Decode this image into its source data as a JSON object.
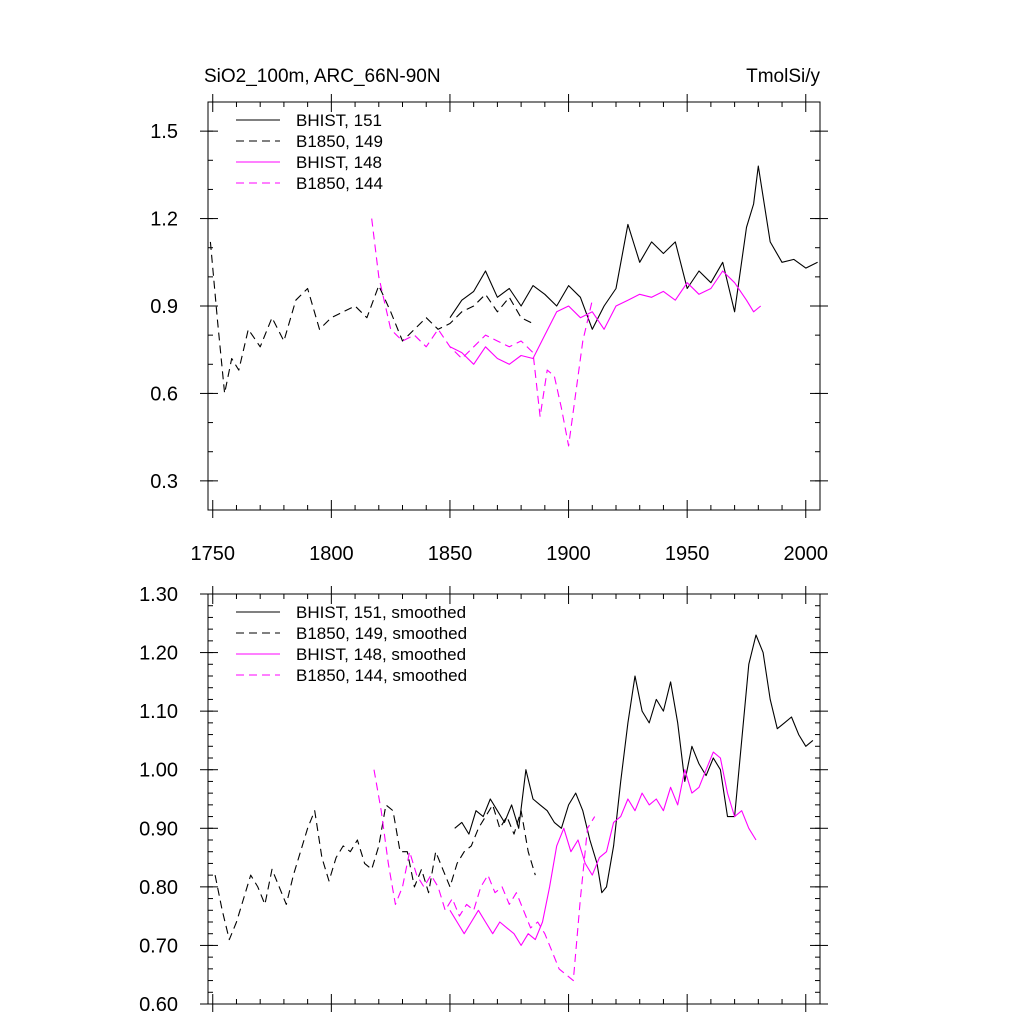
{
  "chart_data": [
    {
      "type": "line",
      "title_left": "SiO2_100m, ARC_66N-90N",
      "title_right": "TmolSi/y",
      "xlabel": "",
      "ylabel": "",
      "xlim": [
        1748,
        2006
      ],
      "ylim": [
        0.2,
        1.6
      ],
      "xticks": [
        1750,
        1800,
        1850,
        1900,
        1950,
        2000
      ],
      "xtick_labels": [
        "1750",
        "1800",
        "1850",
        "1900",
        "1950",
        "2000"
      ],
      "yticks": [
        0.3,
        0.6,
        0.9,
        1.2,
        1.5
      ],
      "ytick_labels": [
        "0.3",
        "0.6",
        "0.9",
        "1.2",
        "1.5"
      ],
      "legend_position": "top-left",
      "series": [
        {
          "name": "BHIST, 151",
          "color": "#000000",
          "dash": "solid",
          "x": [
            1850,
            1855,
            1860,
            1865,
            1870,
            1875,
            1880,
            1885,
            1890,
            1895,
            1900,
            1905,
            1910,
            1915,
            1920,
            1925,
            1930,
            1935,
            1940,
            1945,
            1950,
            1955,
            1960,
            1965,
            1970,
            1975,
            1978,
            1980,
            1985,
            1990,
            1995,
            2000,
            2005
          ],
          "y": [
            0.86,
            0.92,
            0.95,
            1.02,
            0.93,
            0.96,
            0.9,
            0.97,
            0.94,
            0.9,
            0.97,
            0.93,
            0.82,
            0.9,
            0.96,
            1.18,
            1.05,
            1.12,
            1.08,
            1.12,
            0.96,
            1.02,
            0.98,
            1.05,
            0.88,
            1.17,
            1.25,
            1.38,
            1.12,
            1.05,
            1.06,
            1.03,
            1.05
          ]
        },
        {
          "name": "B1850, 149",
          "color": "#000000",
          "dash": "8,5",
          "x": [
            1749,
            1752,
            1755,
            1758,
            1761,
            1765,
            1770,
            1775,
            1780,
            1785,
            1790,
            1795,
            1800,
            1805,
            1810,
            1815,
            1820,
            1825,
            1830,
            1835,
            1840,
            1845,
            1850,
            1855,
            1860,
            1865,
            1870,
            1875,
            1880,
            1885
          ],
          "y": [
            1.12,
            0.85,
            0.6,
            0.72,
            0.68,
            0.82,
            0.76,
            0.86,
            0.78,
            0.92,
            0.96,
            0.82,
            0.86,
            0.88,
            0.9,
            0.86,
            0.97,
            0.88,
            0.78,
            0.82,
            0.86,
            0.82,
            0.84,
            0.88,
            0.9,
            0.94,
            0.88,
            0.93,
            0.86,
            0.84
          ]
        },
        {
          "name": "BHIST, 148",
          "color": "#ff00ff",
          "dash": "solid",
          "x": [
            1850,
            1855,
            1860,
            1865,
            1870,
            1875,
            1880,
            1885,
            1890,
            1895,
            1900,
            1905,
            1910,
            1915,
            1920,
            1925,
            1930,
            1935,
            1940,
            1945,
            1950,
            1955,
            1960,
            1965,
            1970,
            1975,
            1978,
            1981
          ],
          "y": [
            0.76,
            0.74,
            0.7,
            0.76,
            0.72,
            0.7,
            0.73,
            0.72,
            0.8,
            0.88,
            0.9,
            0.86,
            0.88,
            0.82,
            0.9,
            0.92,
            0.94,
            0.93,
            0.95,
            0.92,
            0.98,
            0.94,
            0.96,
            1.02,
            0.98,
            0.92,
            0.88,
            0.9
          ]
        },
        {
          "name": "B1850, 144",
          "color": "#ff00ff",
          "dash": "8,5",
          "x": [
            1817,
            1820,
            1825,
            1830,
            1835,
            1840,
            1845,
            1850,
            1855,
            1860,
            1865,
            1870,
            1875,
            1880,
            1885,
            1888,
            1891,
            1894,
            1897,
            1900,
            1903,
            1906,
            1910
          ],
          "y": [
            1.2,
            1.0,
            0.82,
            0.78,
            0.8,
            0.76,
            0.82,
            0.76,
            0.72,
            0.76,
            0.8,
            0.78,
            0.76,
            0.78,
            0.74,
            0.52,
            0.68,
            0.66,
            0.55,
            0.42,
            0.6,
            0.78,
            0.92
          ]
        }
      ]
    },
    {
      "type": "line",
      "xlabel": "",
      "ylabel": "",
      "xlim": [
        1748,
        2006
      ],
      "ylim": [
        0.6,
        1.3
      ],
      "xticks": [
        1750,
        1800,
        1850,
        1900,
        1950,
        2000
      ],
      "yticks": [
        0.6,
        0.7,
        0.8,
        0.9,
        1.0,
        1.1,
        1.2,
        1.3
      ],
      "ytick_labels": [
        "0.60",
        "0.70",
        "0.80",
        "0.90",
        "1.00",
        "1.10",
        "1.20",
        "1.30"
      ],
      "legend_position": "top-left",
      "series": [
        {
          "name": "BHIST, 151, smoothed",
          "color": "#000000",
          "dash": "solid",
          "x": [
            1852,
            1855,
            1858,
            1861,
            1864,
            1867,
            1870,
            1873,
            1876,
            1879,
            1882,
            1885,
            1888,
            1891,
            1894,
            1897,
            1900,
            1903,
            1906,
            1909,
            1912,
            1914,
            1916,
            1919,
            1922,
            1925,
            1928,
            1931,
            1934,
            1937,
            1940,
            1943,
            1946,
            1949,
            1952,
            1955,
            1958,
            1961,
            1964,
            1967,
            1970,
            1973,
            1976,
            1979,
            1982,
            1985,
            1988,
            1991,
            1994,
            1997,
            2000,
            2003
          ],
          "y": [
            0.9,
            0.91,
            0.89,
            0.93,
            0.92,
            0.95,
            0.93,
            0.91,
            0.94,
            0.9,
            1.0,
            0.95,
            0.94,
            0.93,
            0.91,
            0.9,
            0.94,
            0.96,
            0.93,
            0.88,
            0.84,
            0.79,
            0.8,
            0.87,
            0.98,
            1.08,
            1.16,
            1.1,
            1.08,
            1.12,
            1.1,
            1.15,
            1.08,
            0.98,
            1.04,
            1.01,
            0.99,
            1.02,
            1.0,
            0.92,
            0.92,
            1.05,
            1.18,
            1.23,
            1.2,
            1.12,
            1.07,
            1.08,
            1.09,
            1.06,
            1.04,
            1.05
          ]
        },
        {
          "name": "B1850, 149, smoothed",
          "color": "#000000",
          "dash": "8,5",
          "x": [
            1751,
            1754,
            1757,
            1760,
            1763,
            1766,
            1769,
            1772,
            1775,
            1778,
            1781,
            1784,
            1787,
            1790,
            1793,
            1796,
            1799,
            1802,
            1805,
            1808,
            1811,
            1814,
            1817,
            1820,
            1823,
            1826,
            1829,
            1832,
            1835,
            1838,
            1841,
            1844,
            1847,
            1850,
            1853,
            1856,
            1859,
            1862,
            1865,
            1868,
            1871,
            1874,
            1877,
            1880,
            1883,
            1886
          ],
          "y": [
            0.82,
            0.76,
            0.71,
            0.74,
            0.78,
            0.82,
            0.8,
            0.77,
            0.83,
            0.8,
            0.77,
            0.82,
            0.86,
            0.9,
            0.93,
            0.85,
            0.81,
            0.85,
            0.87,
            0.86,
            0.88,
            0.84,
            0.83,
            0.87,
            0.94,
            0.93,
            0.86,
            0.86,
            0.8,
            0.83,
            0.79,
            0.86,
            0.83,
            0.8,
            0.84,
            0.86,
            0.87,
            0.9,
            0.92,
            0.94,
            0.9,
            0.92,
            0.89,
            0.93,
            0.86,
            0.82
          ]
        },
        {
          "name": "BHIST, 148, smoothed",
          "color": "#ff00ff",
          "dash": "solid",
          "x": [
            1850,
            1853,
            1856,
            1859,
            1862,
            1865,
            1868,
            1871,
            1874,
            1877,
            1880,
            1883,
            1886,
            1889,
            1892,
            1895,
            1898,
            1901,
            1904,
            1907,
            1910,
            1913,
            1916,
            1919,
            1922,
            1925,
            1928,
            1931,
            1934,
            1937,
            1940,
            1943,
            1946,
            1949,
            1952,
            1955,
            1958,
            1961,
            1964,
            1967,
            1970,
            1973,
            1976,
            1979
          ],
          "y": [
            0.76,
            0.74,
            0.72,
            0.74,
            0.76,
            0.74,
            0.72,
            0.74,
            0.73,
            0.72,
            0.7,
            0.72,
            0.71,
            0.74,
            0.8,
            0.87,
            0.9,
            0.86,
            0.88,
            0.84,
            0.82,
            0.85,
            0.86,
            0.91,
            0.92,
            0.95,
            0.93,
            0.96,
            0.94,
            0.95,
            0.93,
            0.97,
            0.94,
            1.0,
            0.96,
            0.97,
            1.0,
            1.03,
            1.02,
            0.96,
            0.92,
            0.93,
            0.9,
            0.88
          ]
        },
        {
          "name": "B1850, 144, smoothed",
          "color": "#ff00ff",
          "dash": "8,5",
          "x": [
            1818,
            1821,
            1824,
            1827,
            1830,
            1833,
            1836,
            1839,
            1842,
            1845,
            1848,
            1851,
            1854,
            1857,
            1860,
            1863,
            1866,
            1869,
            1872,
            1875,
            1878,
            1881,
            1884,
            1887,
            1890,
            1893,
            1896,
            1899,
            1902,
            1905,
            1908,
            1911
          ],
          "y": [
            1.0,
            0.93,
            0.84,
            0.77,
            0.8,
            0.86,
            0.82,
            0.8,
            0.82,
            0.8,
            0.76,
            0.78,
            0.75,
            0.77,
            0.76,
            0.8,
            0.82,
            0.79,
            0.8,
            0.77,
            0.79,
            0.76,
            0.73,
            0.74,
            0.72,
            0.69,
            0.66,
            0.65,
            0.64,
            0.78,
            0.9,
            0.92
          ]
        }
      ]
    }
  ]
}
